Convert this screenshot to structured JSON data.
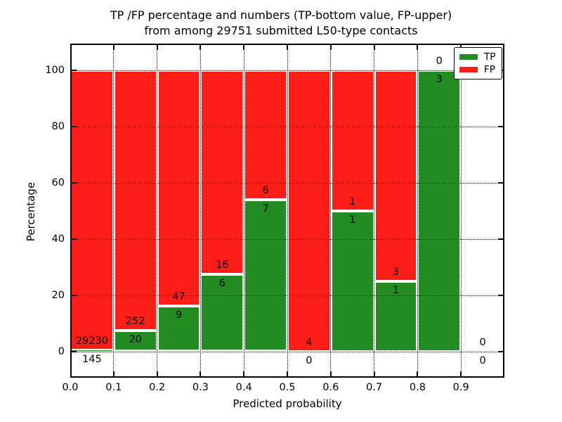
{
  "title": {
    "line1": "TP /FP percentage and numbers (TP-bottom value, FP-upper)",
    "line2": "from among 29751 submitted L50-type contacts"
  },
  "x_axis": {
    "label": "Predicted probability",
    "tick_labels": [
      "0.0",
      "0.1",
      "0.2",
      "0.3",
      "0.4",
      "0.5",
      "0.6",
      "0.7",
      "0.8",
      "0.9"
    ]
  },
  "y_axis": {
    "label": "Percentage",
    "tick_labels": [
      "0",
      "20",
      "40",
      "60",
      "80",
      "100"
    ],
    "tick_values": [
      0,
      20,
      40,
      60,
      80,
      100
    ]
  },
  "legend": {
    "items": [
      {
        "label": "TP",
        "color": "#228b22"
      },
      {
        "label": "FP",
        "color": "#fd1d17"
      }
    ]
  },
  "chart_data": {
    "type": "bar",
    "stacked": true,
    "normalized_to": 100,
    "title": "TP /FP percentage and numbers (TP-bottom value, FP-upper) from among 29751 submitted L50-type contacts",
    "xlabel": "Predicted probability",
    "ylabel": "Percentage",
    "xlim": [
      0.0,
      1.0
    ],
    "ylim": [
      0,
      100
    ],
    "grid": "dotted",
    "legend_position": "upper right",
    "total_contacts": 29751,
    "series_note": "TP = green bottom segment, FP = red upper segment; labels show raw counts (TP bottom value, FP upper value)",
    "colors": {
      "tp": "#228b22",
      "fp": "#fd1d17",
      "bar_edge": "#ffffff"
    },
    "bins": [
      {
        "x_range": [
          0.0,
          0.1
        ],
        "tp": 145,
        "fp": 29230,
        "tp_pct": 0.5
      },
      {
        "x_range": [
          0.1,
          0.2
        ],
        "tp": 20,
        "fp": 252,
        "tp_pct": 7.4
      },
      {
        "x_range": [
          0.2,
          0.3
        ],
        "tp": 9,
        "fp": 47,
        "tp_pct": 16.1
      },
      {
        "x_range": [
          0.3,
          0.4
        ],
        "tp": 6,
        "fp": 16,
        "tp_pct": 27.3
      },
      {
        "x_range": [
          0.4,
          0.5
        ],
        "tp": 7,
        "fp": 6,
        "tp_pct": 53.8
      },
      {
        "x_range": [
          0.5,
          0.6
        ],
        "tp": 0,
        "fp": 4,
        "tp_pct": 0
      },
      {
        "x_range": [
          0.6,
          0.7
        ],
        "tp": 1,
        "fp": 1,
        "tp_pct": 50
      },
      {
        "x_range": [
          0.7,
          0.8
        ],
        "tp": 1,
        "fp": 3,
        "tp_pct": 25
      },
      {
        "x_range": [
          0.8,
          0.9
        ],
        "tp": 3,
        "fp": 0,
        "tp_pct": 100
      },
      {
        "x_range": [
          0.9,
          1.0
        ],
        "tp": 0,
        "fp": 0,
        "tp_pct": null
      }
    ]
  }
}
